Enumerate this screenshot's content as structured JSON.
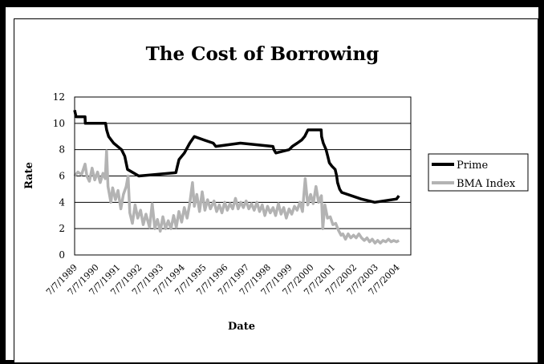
{
  "chart_data": {
    "type": "line",
    "title": "The Cost of Borrowing",
    "xlabel": "Date",
    "ylabel": "Rate",
    "ylim": [
      0,
      12
    ],
    "yticks": [
      0,
      2,
      4,
      6,
      8,
      10,
      12
    ],
    "xlim": [
      "1989-07-07",
      "2005-03-01"
    ],
    "xticks": [
      "7/7/1989",
      "7/7/1990",
      "7/7/1991",
      "7/7/1992",
      "7/7/1993",
      "7/7/1994",
      "7/7/1995",
      "7/7/1996",
      "7/7/1997",
      "7/7/1998",
      "7/7/1999",
      "7/7/2000",
      "7/7/2001",
      "7/7/2002",
      "7/7/2003",
      "7/7/2004"
    ],
    "grid": true,
    "legend": "right",
    "series": [
      {
        "name": "Prime",
        "color": "#000000",
        "points": [
          [
            "1989-07-07",
            11.0
          ],
          [
            "1989-08-01",
            10.5
          ],
          [
            "1990-01-01",
            10.5
          ],
          [
            "1990-01-05",
            10.0
          ],
          [
            "1990-12-15",
            10.0
          ],
          [
            "1991-01-02",
            9.5
          ],
          [
            "1991-02-05",
            9.0
          ],
          [
            "1991-05-01",
            8.5
          ],
          [
            "1991-09-13",
            8.0
          ],
          [
            "1991-11-06",
            7.5
          ],
          [
            "1991-12-23",
            6.5
          ],
          [
            "1992-07-02",
            6.0
          ],
          [
            "1994-03-24",
            6.25
          ],
          [
            "1994-04-19",
            6.75
          ],
          [
            "1994-05-17",
            7.25
          ],
          [
            "1994-08-16",
            7.75
          ],
          [
            "1994-11-15",
            8.5
          ],
          [
            "1995-02-01",
            9.0
          ],
          [
            "1995-07-07",
            8.75
          ],
          [
            "1995-12-20",
            8.5
          ],
          [
            "1996-02-01",
            8.25
          ],
          [
            "1997-03-26",
            8.5
          ],
          [
            "1998-09-30",
            8.25
          ],
          [
            "1998-10-16",
            8.0
          ],
          [
            "1998-11-18",
            7.75
          ],
          [
            "1999-07-01",
            8.0
          ],
          [
            "1999-08-25",
            8.25
          ],
          [
            "1999-11-17",
            8.5
          ],
          [
            "2000-02-03",
            8.75
          ],
          [
            "2000-03-22",
            9.0
          ],
          [
            "2000-05-17",
            9.5
          ],
          [
            "2000-12-28",
            9.5
          ],
          [
            "2001-01-04",
            9.0
          ],
          [
            "2001-02-01",
            8.5
          ],
          [
            "2001-03-21",
            8.0
          ],
          [
            "2001-04-19",
            7.5
          ],
          [
            "2001-05-16",
            7.0
          ],
          [
            "2001-06-28",
            6.75
          ],
          [
            "2001-08-22",
            6.5
          ],
          [
            "2001-09-18",
            6.0
          ],
          [
            "2001-10-03",
            5.5
          ],
          [
            "2001-11-07",
            5.0
          ],
          [
            "2001-12-12",
            4.75
          ],
          [
            "2002-11-07",
            4.25
          ],
          [
            "2003-06-26",
            4.0
          ],
          [
            "2004-07-01",
            4.25
          ],
          [
            "2004-08-11",
            4.5
          ]
        ]
      },
      {
        "name": "BMA Index",
        "color": "#b3b3b3",
        "points": [
          [
            "1989-07-07",
            6.0
          ],
          [
            "1989-09-01",
            6.3
          ],
          [
            "1989-11-01",
            6.1
          ],
          [
            "1990-01-01",
            6.9
          ],
          [
            "1990-02-01",
            6.0
          ],
          [
            "1990-03-15",
            5.6
          ],
          [
            "1990-05-01",
            6.6
          ],
          [
            "1990-06-15",
            5.7
          ],
          [
            "1990-08-01",
            6.3
          ],
          [
            "1990-09-15",
            5.5
          ],
          [
            "1990-11-01",
            6.2
          ],
          [
            "1990-12-10",
            5.8
          ],
          [
            "1991-01-01",
            7.9
          ],
          [
            "1991-01-25",
            5.2
          ],
          [
            "1991-03-15",
            4.0
          ],
          [
            "1991-04-15",
            5.1
          ],
          [
            "1991-06-01",
            4.2
          ],
          [
            "1991-07-15",
            4.9
          ],
          [
            "1991-09-01",
            3.5
          ],
          [
            "1991-10-15",
            4.6
          ],
          [
            "1991-12-01",
            5.2
          ],
          [
            "1992-01-01",
            6.0
          ],
          [
            "1992-02-01",
            3.2
          ],
          [
            "1992-03-15",
            2.4
          ],
          [
            "1992-05-01",
            3.8
          ],
          [
            "1992-06-15",
            2.8
          ],
          [
            "1992-08-01",
            3.4
          ],
          [
            "1992-09-15",
            2.3
          ],
          [
            "1992-11-01",
            3.1
          ],
          [
            "1993-01-01",
            2.1
          ],
          [
            "1993-02-15",
            3.9
          ],
          [
            "1993-04-01",
            2.0
          ],
          [
            "1993-05-15",
            2.7
          ],
          [
            "1993-07-01",
            1.8
          ],
          [
            "1993-08-15",
            2.9
          ],
          [
            "1993-10-01",
            2.0
          ],
          [
            "1993-11-15",
            2.6
          ],
          [
            "1994-01-01",
            2.0
          ],
          [
            "1994-02-15",
            3.0
          ],
          [
            "1994-04-01",
            2.1
          ],
          [
            "1994-05-15",
            3.3
          ],
          [
            "1994-07-01",
            2.5
          ],
          [
            "1994-08-15",
            3.6
          ],
          [
            "1994-10-01",
            2.8
          ],
          [
            "1994-11-15",
            3.9
          ],
          [
            "1995-01-01",
            5.5
          ],
          [
            "1995-02-01",
            3.7
          ],
          [
            "1995-03-15",
            4.6
          ],
          [
            "1995-05-01",
            3.3
          ],
          [
            "1995-06-15",
            4.8
          ],
          [
            "1995-08-01",
            3.4
          ],
          [
            "1995-09-15",
            4.2
          ],
          [
            "1995-11-01",
            3.5
          ],
          [
            "1996-01-01",
            4.1
          ],
          [
            "1996-02-15",
            3.3
          ],
          [
            "1996-04-01",
            3.8
          ],
          [
            "1996-05-15",
            3.2
          ],
          [
            "1996-07-01",
            4.0
          ],
          [
            "1996-08-15",
            3.4
          ],
          [
            "1996-10-01",
            3.9
          ],
          [
            "1996-11-15",
            3.5
          ],
          [
            "1997-01-01",
            4.3
          ],
          [
            "1997-02-15",
            3.5
          ],
          [
            "1997-04-01",
            4.0
          ],
          [
            "1997-05-15",
            3.6
          ],
          [
            "1997-07-01",
            4.1
          ],
          [
            "1997-08-15",
            3.5
          ],
          [
            "1997-10-01",
            3.9
          ],
          [
            "1997-11-15",
            3.4
          ],
          [
            "1998-01-01",
            4.0
          ],
          [
            "1998-02-15",
            3.3
          ],
          [
            "1998-04-01",
            3.8
          ],
          [
            "1998-05-15",
            3.0
          ],
          [
            "1998-07-01",
            3.7
          ],
          [
            "1998-08-15",
            3.2
          ],
          [
            "1998-10-01",
            3.6
          ],
          [
            "1998-11-15",
            3.0
          ],
          [
            "1999-01-01",
            3.9
          ],
          [
            "1999-02-15",
            3.1
          ],
          [
            "1999-04-01",
            3.6
          ],
          [
            "1999-05-15",
            2.8
          ],
          [
            "1999-07-01",
            3.5
          ],
          [
            "1999-08-15",
            3.1
          ],
          [
            "1999-10-01",
            3.7
          ],
          [
            "1999-11-15",
            3.4
          ],
          [
            "2000-01-01",
            4.0
          ],
          [
            "2000-02-15",
            3.3
          ],
          [
            "2000-04-01",
            5.8
          ],
          [
            "2000-05-15",
            3.8
          ],
          [
            "2000-07-01",
            4.6
          ],
          [
            "2000-08-15",
            3.9
          ],
          [
            "2000-10-01",
            5.2
          ],
          [
            "2000-11-15",
            4.0
          ],
          [
            "2001-01-01",
            4.5
          ],
          [
            "2001-01-25",
            2.0
          ],
          [
            "2001-03-01",
            3.8
          ],
          [
            "2001-04-15",
            2.8
          ],
          [
            "2001-06-01",
            2.9
          ],
          [
            "2001-07-15",
            2.3
          ],
          [
            "2001-09-01",
            2.4
          ],
          [
            "2001-10-15",
            1.9
          ],
          [
            "2001-12-01",
            1.5
          ],
          [
            "2002-01-01",
            1.6
          ],
          [
            "2002-02-15",
            1.2
          ],
          [
            "2002-04-01",
            1.6
          ],
          [
            "2002-05-15",
            1.3
          ],
          [
            "2002-07-01",
            1.5
          ],
          [
            "2002-08-15",
            1.3
          ],
          [
            "2002-10-01",
            1.6
          ],
          [
            "2002-11-15",
            1.3
          ],
          [
            "2003-01-01",
            1.1
          ],
          [
            "2003-02-15",
            1.3
          ],
          [
            "2003-04-01",
            1.0
          ],
          [
            "2003-05-15",
            1.2
          ],
          [
            "2003-07-01",
            0.9
          ],
          [
            "2003-08-15",
            1.1
          ],
          [
            "2003-10-01",
            0.9
          ],
          [
            "2003-11-15",
            1.1
          ],
          [
            "2004-01-01",
            1.0
          ],
          [
            "2004-02-15",
            1.2
          ],
          [
            "2004-04-01",
            1.0
          ],
          [
            "2004-05-15",
            1.1
          ],
          [
            "2004-07-01",
            1.0
          ],
          [
            "2004-08-11",
            1.1
          ]
        ]
      }
    ]
  }
}
